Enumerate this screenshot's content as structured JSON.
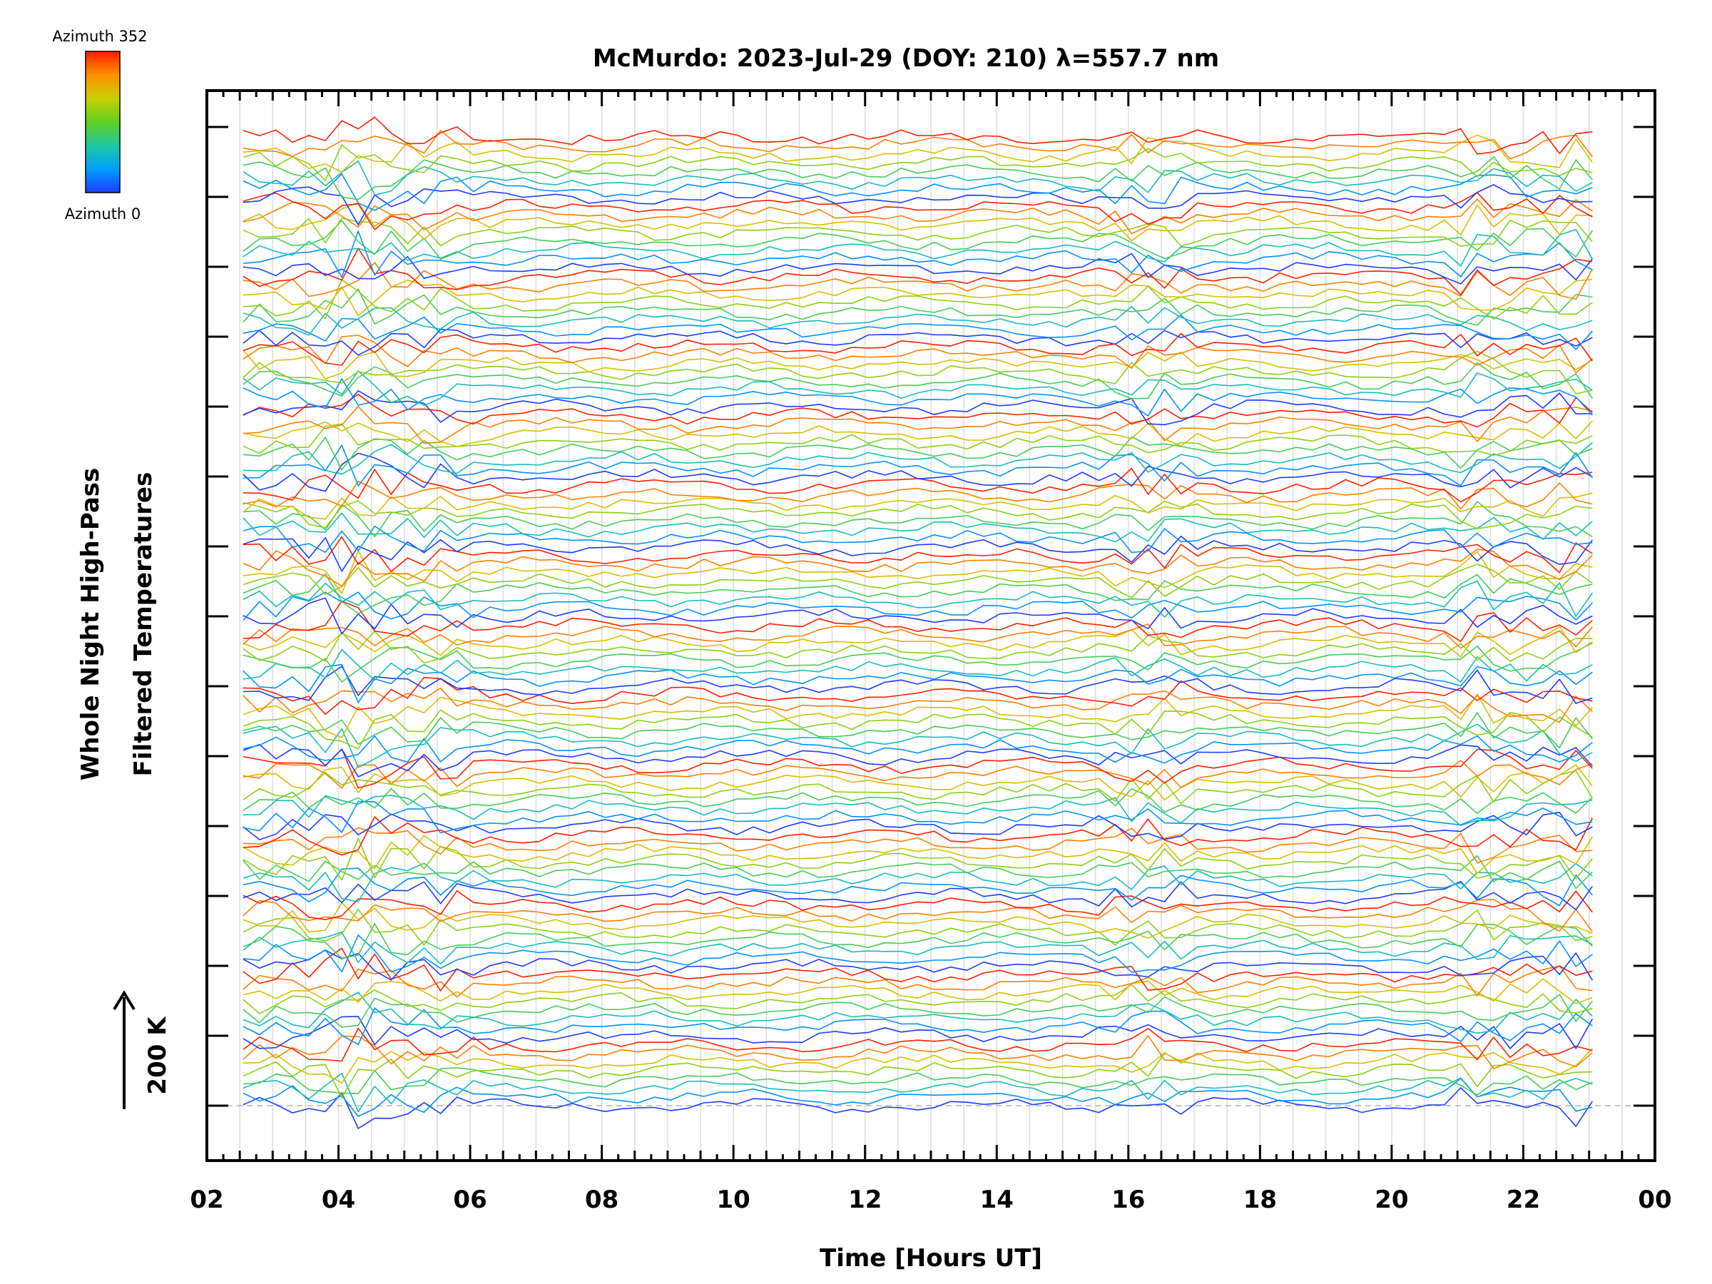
{
  "chart_data": {
    "type": "line",
    "title": "McMurdo: 2023-Jul-29 (DOY: 210) λ=557.7 nm",
    "xlabel": "Time [Hours UT]",
    "ylabel_line1": "Whole Night High-Pass",
    "ylabel_line2": "Filtered Temperatures",
    "scale_label": "200 K",
    "xlim": [
      2,
      24
    ],
    "x_ticks": [
      "02",
      "04",
      "06",
      "08",
      "10",
      "12",
      "14",
      "16",
      "18",
      "20",
      "22",
      "00"
    ],
    "data_start_hour": 2.55,
    "data_end_hour": 23.25,
    "sample_step_hours": 0.25,
    "stacked_groups": 14,
    "traces_per_group": 8,
    "grid": true,
    "colorbar": {
      "top_label": "Azimuth 352",
      "bottom_label": "Azimuth 0",
      "colormap": [
        "#1e3cff",
        "#00a0ff",
        "#20c8a0",
        "#60d020",
        "#c8d000",
        "#ff9000",
        "#ff2000"
      ]
    },
    "colors": {
      "axes": "#000000",
      "grid": "#dcdcdc",
      "baseline": "#b4b4b4"
    },
    "feature_events_hours": [
      4.1,
      4.4,
      5.6,
      16.0,
      16.6,
      21.3,
      22.8
    ]
  }
}
